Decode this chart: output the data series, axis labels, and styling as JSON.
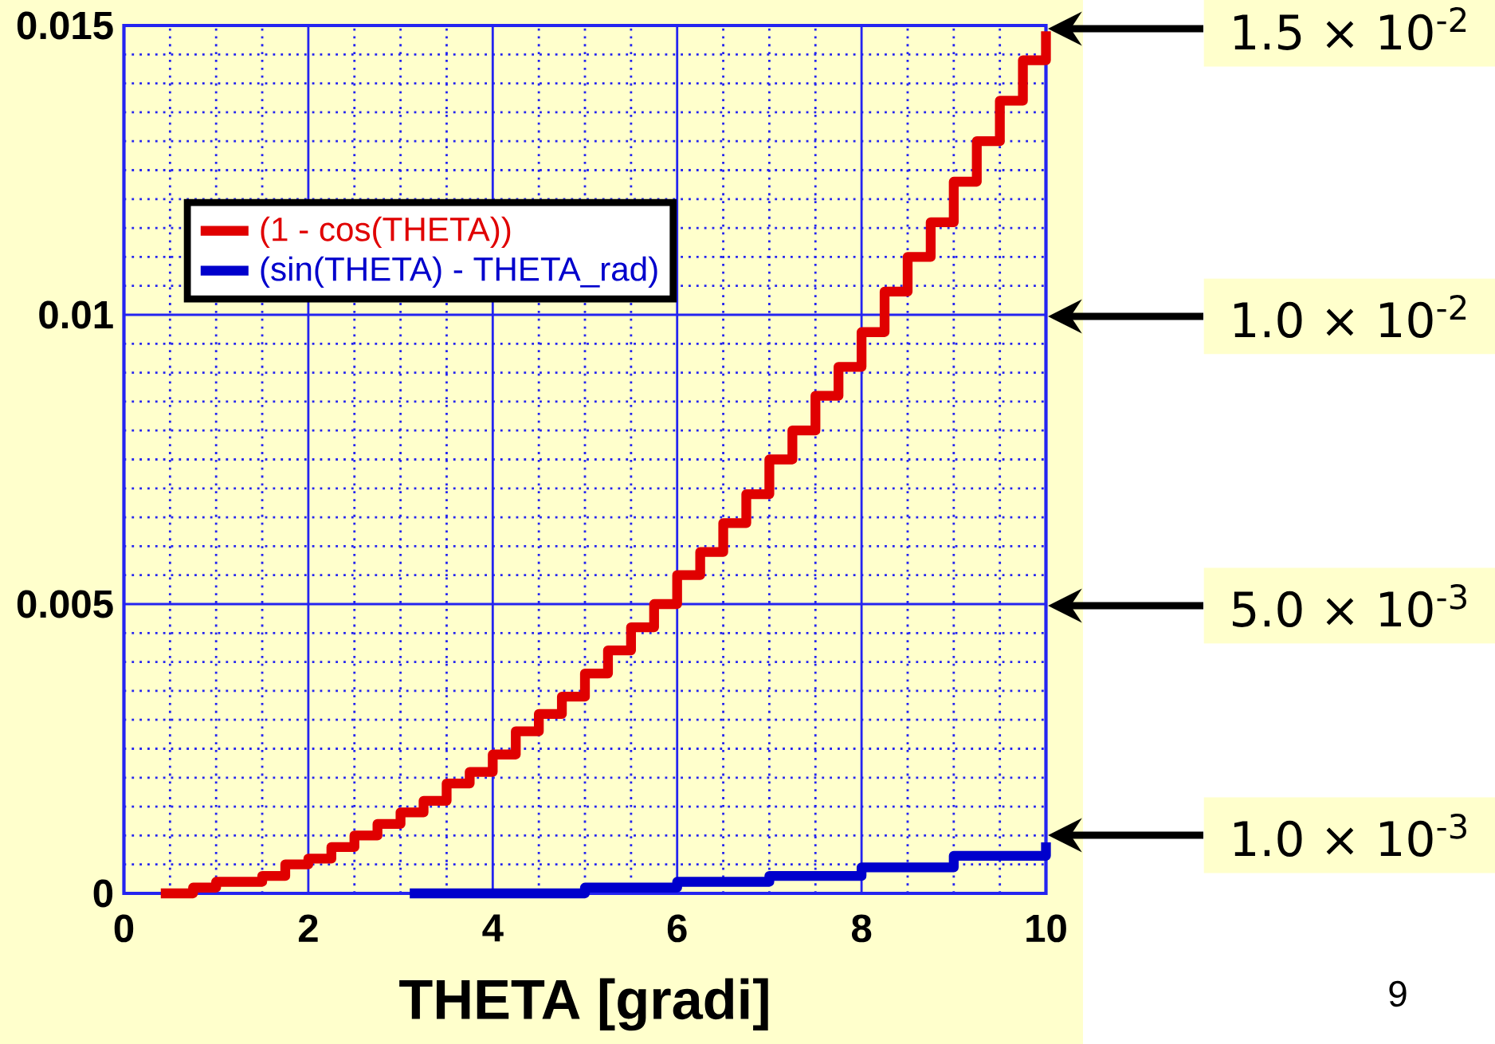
{
  "chart_data": {
    "type": "step",
    "xlabel": "THETA  [gradi]",
    "xlim": [
      0,
      10
    ],
    "ylim": [
      0,
      0.015
    ],
    "xticks": [
      0,
      {
        "value": 0.5,
        "label": null
      },
      {
        "value": 1,
        "label": null
      },
      {
        "value": 1.5,
        "label": null
      },
      2,
      {
        "value": 2.5,
        "label": null
      },
      {
        "value": 3,
        "label": null
      },
      {
        "value": 3.5,
        "label": null
      },
      4,
      {
        "value": 4.5,
        "label": null
      },
      {
        "value": 5,
        "label": null
      },
      {
        "value": 5.5,
        "label": null
      },
      6,
      {
        "value": 6.5,
        "label": null
      },
      {
        "value": 7,
        "label": null
      },
      {
        "value": 7.5,
        "label": null
      },
      8,
      {
        "value": 8.5,
        "label": null
      },
      {
        "value": 9,
        "label": null
      },
      {
        "value": 9.5,
        "label": null
      },
      10
    ],
    "yticks": [
      0,
      {
        "value": 0.0005,
        "label": null
      },
      {
        "value": 0.001,
        "label": null
      },
      {
        "value": 0.0015,
        "label": null
      },
      {
        "value": 0.002,
        "label": null
      },
      {
        "value": 0.0025,
        "label": null
      },
      {
        "value": 0.003,
        "label": null
      },
      {
        "value": 0.0035,
        "label": null
      },
      {
        "value": 0.004,
        "label": null
      },
      {
        "value": 0.0045,
        "label": null
      },
      0.005,
      {
        "value": 0.0055,
        "label": null
      },
      {
        "value": 0.006,
        "label": null
      },
      {
        "value": 0.0065,
        "label": null
      },
      {
        "value": 0.007,
        "label": null
      },
      {
        "value": 0.0075,
        "label": null
      },
      {
        "value": 0.008,
        "label": null
      },
      {
        "value": 0.0085,
        "label": null
      },
      {
        "value": 0.009,
        "label": null
      },
      {
        "value": 0.0095,
        "label": null
      },
      0.01,
      {
        "value": 0.0105,
        "label": null
      },
      {
        "value": 0.011,
        "label": null
      },
      {
        "value": 0.0115,
        "label": null
      },
      {
        "value": 0.012,
        "label": null
      },
      {
        "value": 0.0125,
        "label": null
      },
      {
        "value": 0.013,
        "label": null
      },
      {
        "value": 0.0135,
        "label": null
      },
      {
        "value": 0.014,
        "label": null
      },
      {
        "value": 0.0145,
        "label": null
      },
      0.015
    ],
    "grid": true,
    "legend": "top left",
    "series": [
      {
        "name": "(1 - cos(THETA))",
        "color": "#e00000",
        "x": [
          0.4,
          0.75,
          1,
          1.25,
          1.5,
          1.75,
          2,
          2.25,
          2.5,
          2.75,
          3,
          3.25,
          3.5,
          3.75,
          4,
          4.25,
          4.5,
          4.75,
          5,
          5.25,
          5.5,
          5.75,
          6,
          6.25,
          6.5,
          6.75,
          7,
          7.25,
          7.5,
          7.75,
          8,
          8.25,
          8.5,
          8.75,
          9,
          9.25,
          9.5,
          9.75,
          10
        ],
        "values": [
          0,
          0.0001,
          0.0002,
          0.0002,
          0.0003,
          0.0005,
          0.0006,
          0.0008,
          0.001,
          0.0012,
          0.0014,
          0.0016,
          0.0019,
          0.0021,
          0.0024,
          0.0028,
          0.0031,
          0.0034,
          0.0038,
          0.0042,
          0.0046,
          0.005,
          0.0055,
          0.0059,
          0.0064,
          0.0069,
          0.0075,
          0.008,
          0.0086,
          0.0091,
          0.0097,
          0.0104,
          0.011,
          0.0116,
          0.0123,
          0.013,
          0.0137,
          0.0144,
          0.0149
        ]
      },
      {
        "name": "(sin(THETA) - THETA_rad)",
        "color": "#0000cc",
        "x": [
          3.1,
          4,
          5,
          6,
          7,
          8,
          9,
          10
        ],
        "values": [
          0,
          0.0,
          0.0001,
          0.0002,
          0.0003,
          0.00045,
          0.00065,
          0.00088
        ]
      }
    ],
    "annotations": [
      "1.5 × 10$^{-2}$",
      "1.0 × 10$^{-2}$",
      "5.0 × 10$^{-3}$",
      "1.0 × 10$^{-3}$",
      "9"
    ]
  }
}
